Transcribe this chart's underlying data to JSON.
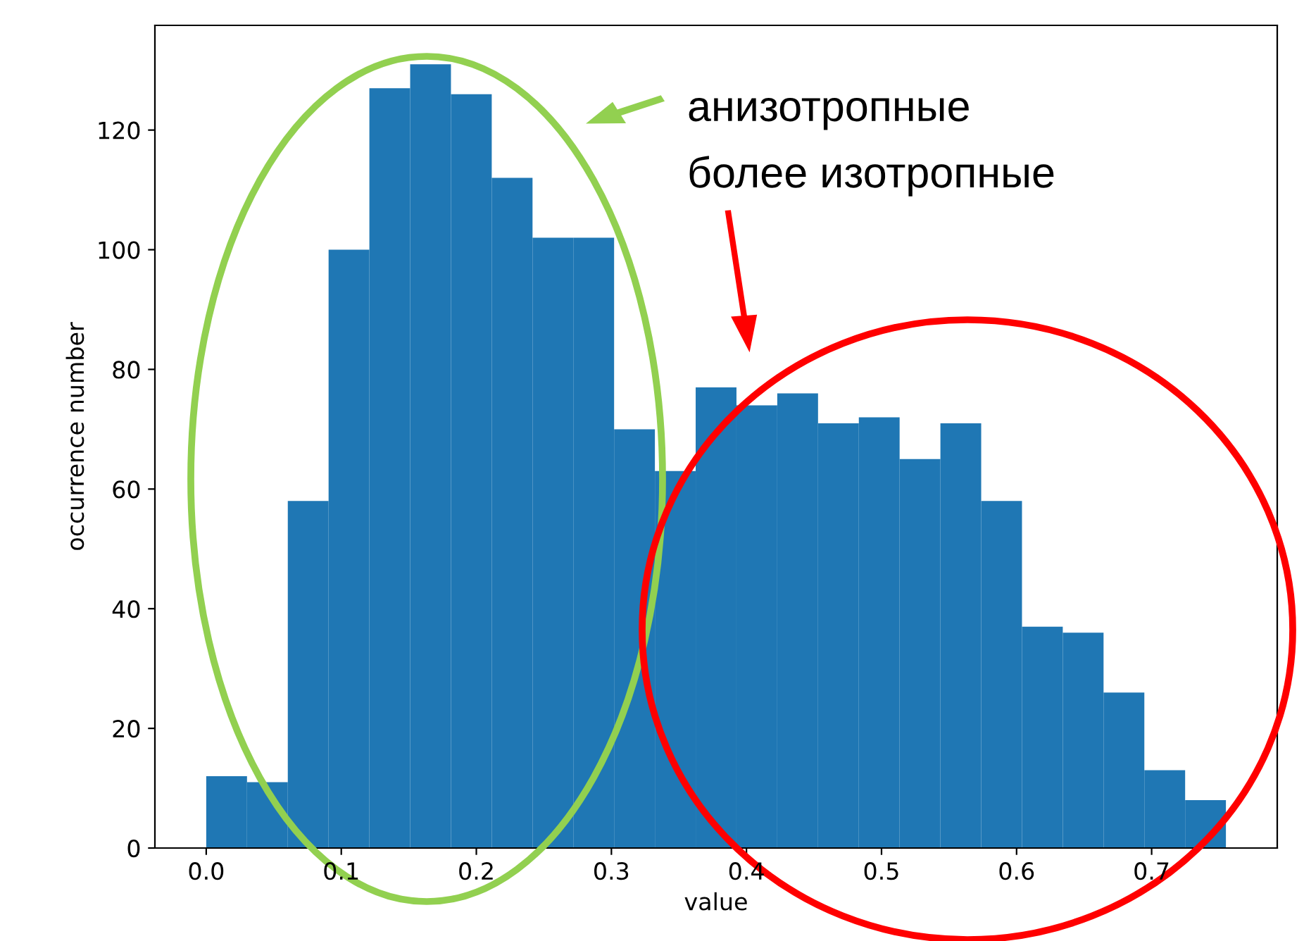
{
  "chart_data": {
    "type": "histogram",
    "xlabel": "value",
    "ylabel": "occurrence number",
    "bins": [
      0,
      0.0302,
      0.0604,
      0.0906,
      0.1208,
      0.151,
      0.1812,
      0.2114,
      0.2416,
      0.2718,
      0.302,
      0.3322,
      0.3624,
      0.3926,
      0.4228,
      0.453,
      0.4832,
      0.5134,
      0.5436,
      0.5738,
      0.604,
      0.6342,
      0.6644,
      0.6946,
      0.7248,
      0.755
    ],
    "values": [
      12,
      11,
      58,
      100,
      127,
      131,
      126,
      112,
      102,
      102,
      70,
      63,
      77,
      74,
      76,
      71,
      72,
      65,
      71,
      58,
      37,
      36,
      26,
      13,
      8
    ],
    "color": "#1f77b4",
    "xlim": [
      -0.038,
      0.793
    ],
    "ylim": [
      0,
      137.5
    ],
    "xticks": [
      {
        "value": 0,
        "label": "0.0"
      },
      0.1,
      0.2,
      0.3,
      0.4,
      0.5,
      0.6,
      0.7
    ],
    "yticks": [
      0,
      20,
      40,
      60,
      80,
      100,
      120
    ],
    "grid": false,
    "legend": false,
    "annotations": [
      "анизотропные",
      "более изотропные"
    ]
  }
}
